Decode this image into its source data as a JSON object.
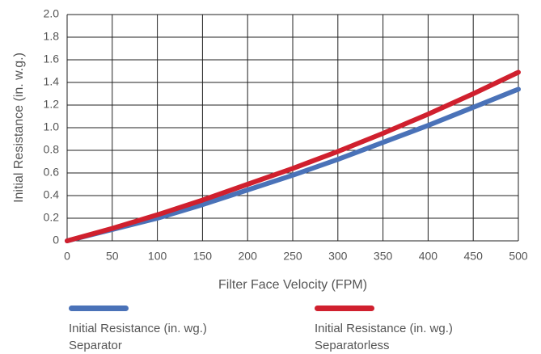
{
  "chart_data": {
    "type": "line",
    "x_label": "Filter Face Velocity (FPM)",
    "y_label": "Initial Resistance (in. w.g.)",
    "x": [
      0,
      50,
      100,
      150,
      200,
      250,
      300,
      350,
      400,
      450,
      500
    ],
    "series": [
      {
        "name": "Initial Resistance (in. wg.) Separator",
        "color": "#4a72b8",
        "values": [
          0,
          0.1,
          0.2,
          0.32,
          0.45,
          0.58,
          0.72,
          0.87,
          1.02,
          1.18,
          1.34
        ]
      },
      {
        "name": "Initial Resistance (in. wg.) Separatorless",
        "color": "#d0202e",
        "values": [
          0,
          0.11,
          0.23,
          0.36,
          0.5,
          0.64,
          0.79,
          0.95,
          1.12,
          1.3,
          1.49
        ]
      }
    ],
    "xlim": [
      0,
      500
    ],
    "xticks": [
      0,
      50,
      100,
      150,
      200,
      250,
      300,
      350,
      400,
      450,
      500
    ],
    "ylim": [
      0,
      2
    ],
    "yticks": [
      0,
      0.2,
      0.4,
      0.6,
      0.8,
      {
        "value": 1,
        "label": "1.0"
      },
      1.2,
      1.4,
      1.6,
      1.8,
      {
        "value": 2,
        "label": "2.0"
      }
    ],
    "grid": true
  }
}
